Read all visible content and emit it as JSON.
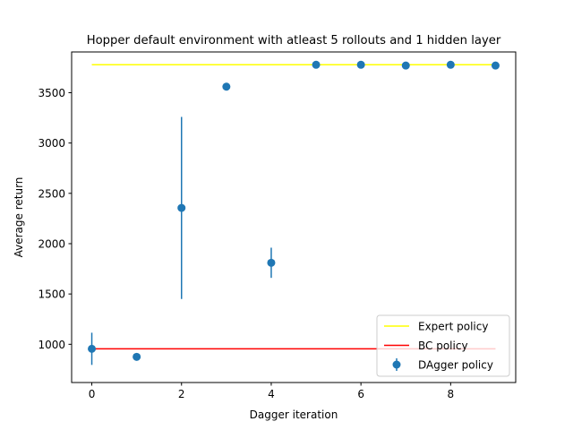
{
  "chart_data": {
    "type": "scatter",
    "title": "Hopper default environment with atleast 5 rollouts and 1 hidden layer",
    "xlabel": "Dagger iteration",
    "ylabel": "Average return",
    "xlim": [
      -0.45,
      9.45
    ],
    "ylim": [
      620,
      3905
    ],
    "xticks": [
      0,
      2,
      4,
      6,
      8
    ],
    "xtick_labels": [
      "0",
      "2",
      "4",
      "6",
      "8"
    ],
    "yticks": [
      1000,
      1500,
      2000,
      2500,
      3000,
      3500
    ],
    "ytick_labels": [
      "1000",
      "1500",
      "2000",
      "2500",
      "3000",
      "3500"
    ],
    "grid": false,
    "legend_position": "lower right",
    "series": [
      {
        "name": "Expert policy",
        "kind": "hline",
        "color": "#ffff00",
        "x": [
          0,
          9
        ],
        "y": 3778
      },
      {
        "name": "BC policy",
        "kind": "hline",
        "color": "#ff0000",
        "x": [
          0,
          9
        ],
        "y": 955
      },
      {
        "name": "DAgger policy",
        "kind": "errorbar",
        "color": "#1f77b4",
        "x": [
          0,
          1,
          2,
          3,
          4,
          5,
          6,
          7,
          8,
          9
        ],
        "y": [
          955,
          875,
          2355,
          3560,
          1810,
          3778,
          3778,
          3770,
          3778,
          3770
        ],
        "yerr": [
          160,
          10,
          905,
          5,
          150,
          5,
          5,
          5,
          5,
          5
        ]
      }
    ]
  }
}
